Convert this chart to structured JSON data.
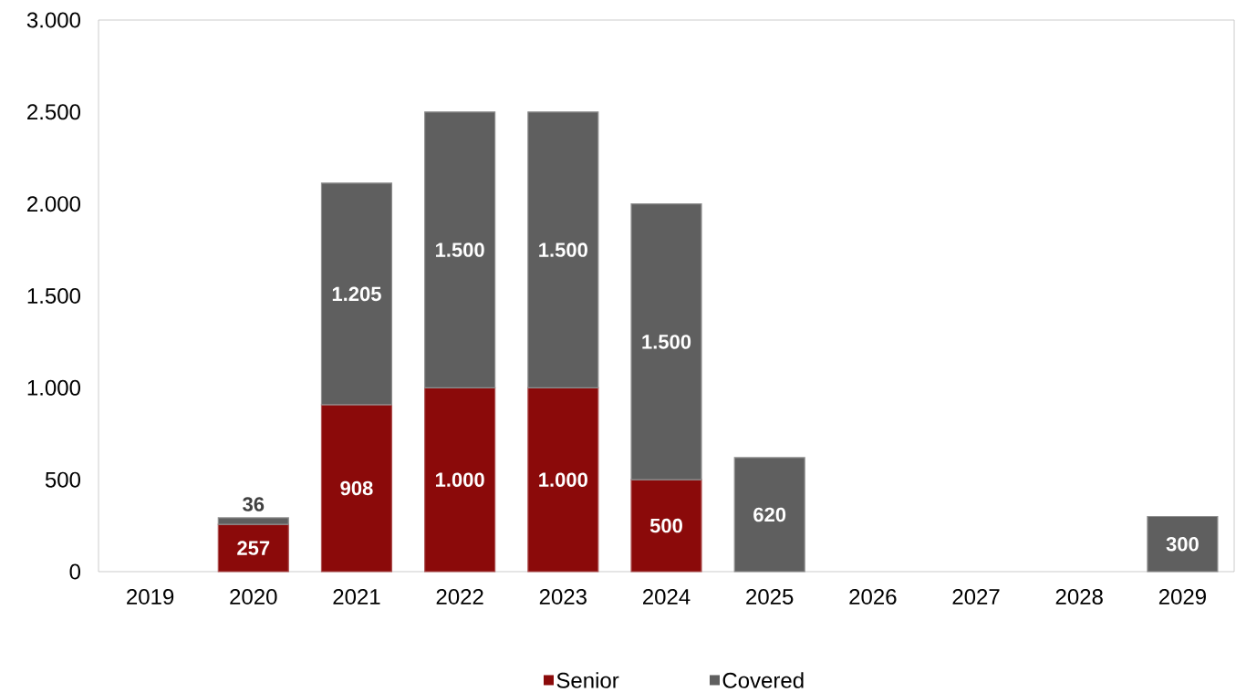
{
  "chart_data": {
    "type": "bar",
    "stacked": true,
    "categories": [
      "2019",
      "2020",
      "2021",
      "2022",
      "2023",
      "2024",
      "2025",
      "2026",
      "2027",
      "2028",
      "2029"
    ],
    "series": [
      {
        "name": "Senior",
        "color": "#8b0a0a",
        "values": [
          null,
          257,
          908,
          1000,
          1000,
          500,
          null,
          null,
          null,
          null,
          null
        ],
        "value_labels": [
          null,
          "257",
          "908",
          "1.000",
          "1.000",
          "500",
          null,
          null,
          null,
          null,
          null
        ]
      },
      {
        "name": "Covered",
        "color": "#5f5f5f",
        "values": [
          null,
          36,
          1205,
          1500,
          1500,
          1500,
          620,
          null,
          null,
          null,
          300
        ],
        "value_labels": [
          null,
          "36",
          "1.205",
          "1.500",
          "1.500",
          "1.500",
          "620",
          null,
          null,
          null,
          "300"
        ]
      }
    ],
    "ylim": [
      0,
      3000
    ],
    "yticks": [
      0,
      500,
      {
        "value": 1000,
        "label": "1.000"
      },
      {
        "value": 1500,
        "label": "1.500"
      },
      {
        "value": 2000,
        "label": "2.000"
      },
      {
        "value": 2500,
        "label": "2.500"
      },
      {
        "value": 3000,
        "label": "3.000"
      }
    ],
    "legend": "bottom"
  }
}
